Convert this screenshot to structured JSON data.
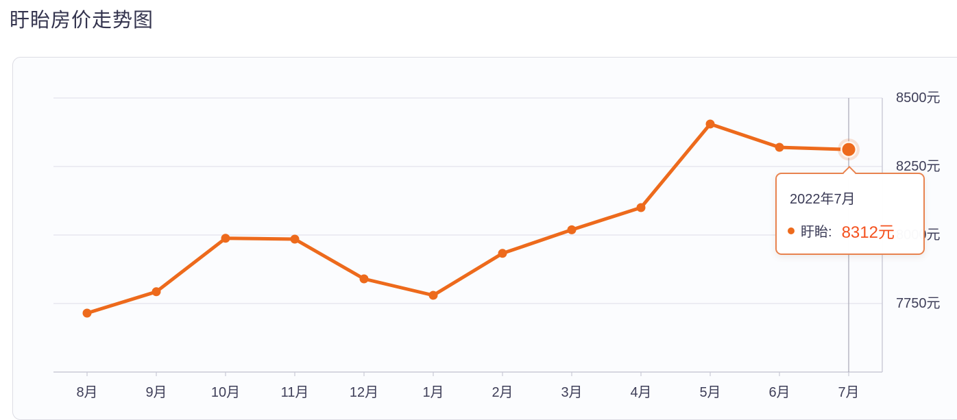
{
  "page": {
    "title": "盱眙房价走势图"
  },
  "colors": {
    "accent_orange": "#ED6A1C",
    "value_orange_red": "#F4511E",
    "axis_text": "#3E3E58",
    "grid_line": "#E7E7EF",
    "axis_line": "#C9C9D6",
    "pointer_line": "#A6A6B4",
    "tooltip_border": "#E8824E"
  },
  "chart_data": {
    "type": "line",
    "title": "盱眙房价走势图",
    "categories": [
      "8月",
      "9月",
      "10月",
      "11月",
      "12月",
      "1月",
      "2月",
      "3月",
      "4月",
      "5月",
      "6月",
      "7月"
    ],
    "series": [
      {
        "name": "盱眙",
        "color": "#ED6A1C",
        "values": [
          7715,
          7793,
          7988,
          7985,
          7840,
          7780,
          7933,
          8019,
          8100,
          8405,
          8320,
          8312
        ]
      }
    ],
    "xlabel": "",
    "ylabel": "",
    "ylim": [
      7500,
      8500
    ],
    "y_ticks": [
      {
        "value": 8500,
        "label": "8500元"
      },
      {
        "value": 8250,
        "label": "8250元"
      },
      {
        "value": 8000,
        "label": "8000元"
      },
      {
        "value": 7750,
        "label": "7750元"
      }
    ],
    "grid": true,
    "legend_position": "none",
    "highlight_index": 11
  },
  "tooltip": {
    "title": "2022年7月",
    "series_name": "盱眙:",
    "value": "8312元"
  }
}
